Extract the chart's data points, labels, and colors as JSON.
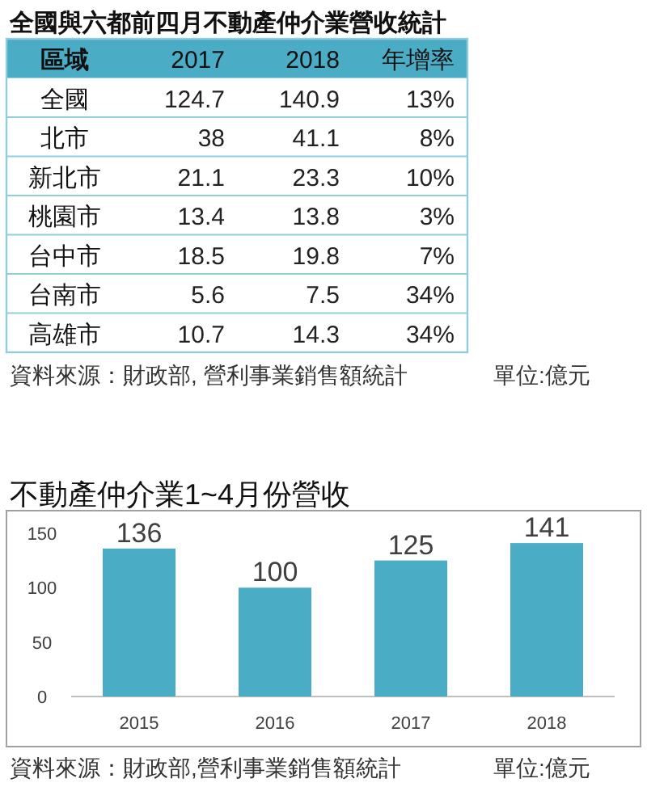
{
  "chart_data": [
    {
      "type": "other",
      "title": "全國與六都前四月不動產仲介業營收統計",
      "xlabel": "區域",
      "categories": [
        "全國",
        "北市",
        "新北市",
        "桃園市",
        "台中市",
        "台南市",
        "高雄市"
      ],
      "series": [
        {
          "name": "2017",
          "values": [
            124.7,
            38,
            21.1,
            13.4,
            18.5,
            5.6,
            10.7
          ]
        },
        {
          "name": "2018",
          "values": [
            140.9,
            41.1,
            23.3,
            13.8,
            19.8,
            7.5,
            14.3
          ]
        },
        {
          "name": "年增率",
          "values": [
            13,
            8,
            10,
            3,
            7,
            34,
            34
          ],
          "value_labels": [
            "13%",
            "8%",
            "10%",
            "3%",
            "7%",
            "34%",
            "34%"
          ]
        }
      ],
      "data_labels": true,
      "annotations": [
        "資料來源：財政部, 營利事業銷售額統計",
        "單位:億元"
      ]
    },
    {
      "type": "bar",
      "title": "不動產仲介業1~4月份營收",
      "categories": [
        "2015",
        "2016",
        "2017",
        "2018"
      ],
      "values": [
        136,
        100,
        125,
        141
      ],
      "color": "#4bacc6",
      "ylim": [
        0,
        150
      ],
      "yticks": [
        0,
        50,
        100,
        150
      ],
      "data_labels": true,
      "annotations": [
        "資料來源：財政部,營利事業銷售額統計",
        "單位:億元"
      ]
    }
  ]
}
